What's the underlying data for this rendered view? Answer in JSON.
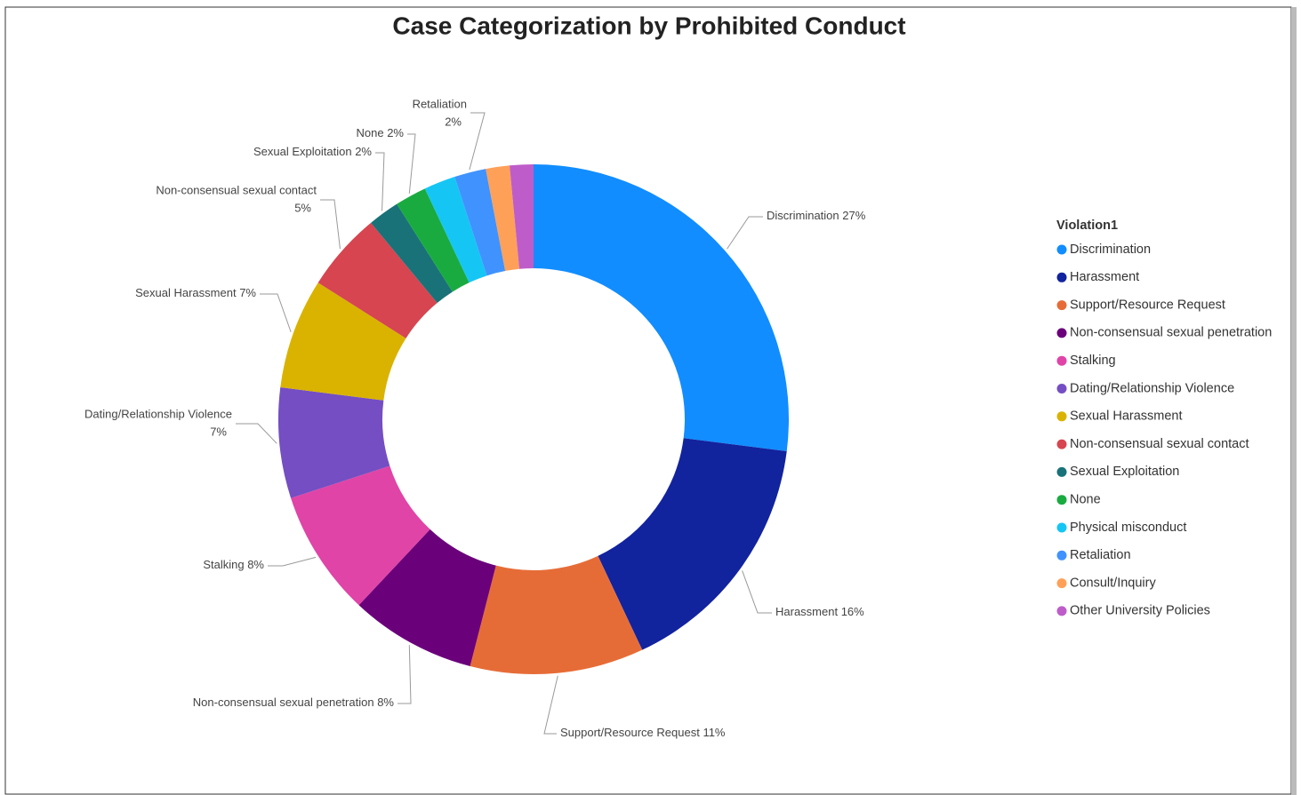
{
  "chart_data": {
    "type": "donut",
    "title": "Case Categorization by Prohibited Conduct",
    "legend_title": "Violation1",
    "legend": "right",
    "categories": [
      "Discrimination",
      "Harassment",
      "Support/Resource Request",
      "Non-consensual sexual penetration",
      "Stalking",
      "Dating/Relationship Violence",
      "Sexual Harassment",
      "Non-consensual sexual contact",
      "Sexual Exploitation",
      "None",
      "Physical misconduct",
      "Retaliation",
      "Consult/Inquiry",
      "Other University Policies"
    ],
    "values": [
      27,
      16,
      11,
      8,
      8,
      7,
      7,
      5,
      2,
      2,
      2,
      2,
      1.5,
      1.5
    ],
    "value_labels": [
      "27%",
      "16%",
      "11%",
      "8%",
      "8%",
      "7%",
      "7%",
      "5%",
      "2%",
      "2%",
      null,
      "2%",
      null,
      null
    ],
    "colors": [
      "#118DFF",
      "#12239E",
      "#E66C37",
      "#6B007B",
      "#E044A7",
      "#744EC2",
      "#D9B300",
      "#D64550",
      "#197278",
      "#1AAB40",
      "#15C6F4",
      "#4092FF",
      "#FFA058",
      "#BE5DC9"
    ]
  }
}
